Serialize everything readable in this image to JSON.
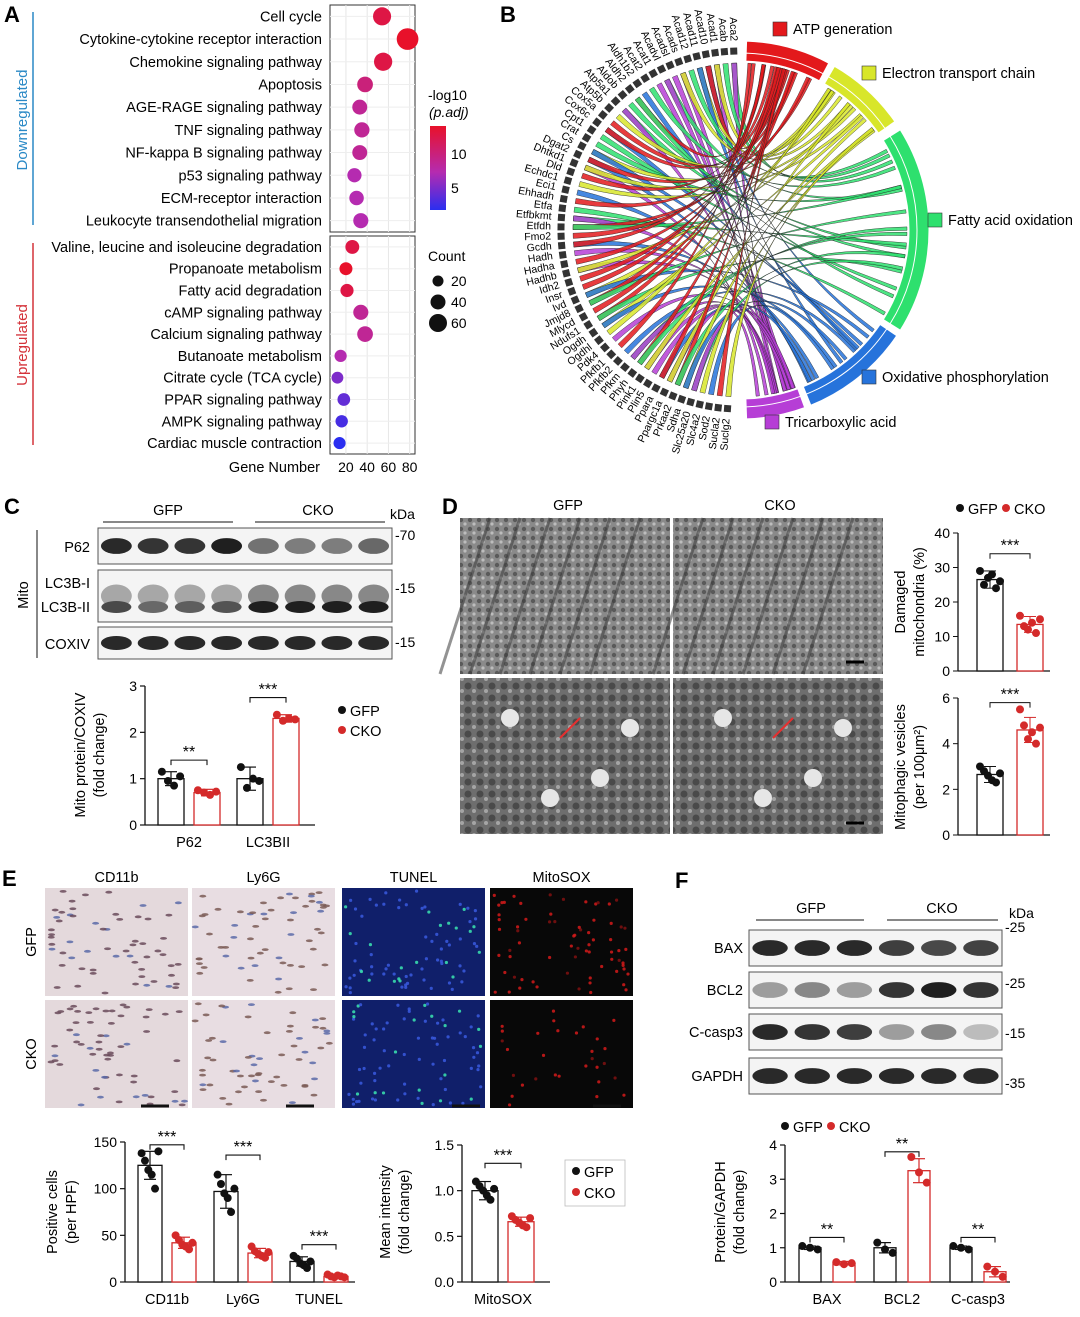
{
  "panels": {
    "A": {
      "label": "A",
      "group_down": "Downregulated",
      "group_up": "Upregulated",
      "down_terms": [
        "Cell cycle",
        "Cytokine-cytokine receptor interaction",
        "Chemokine signaling pathway",
        "Apoptosis",
        "AGE-RAGE signaling pathway",
        "TNF signaling pathway",
        "NF-kappa B signaling pathway",
        "p53 signaling pathway",
        "ECM-receptor interaction",
        "Leukocyte transendothelial migration"
      ],
      "up_terms": [
        "Valine, leucine and isoleucine degradation",
        "Propanoate metabolism",
        "Fatty acid degradation",
        "cAMP signaling pathway",
        "Calcium signaling pathway",
        "Butanoate metabolism",
        "Citrate cycle (TCA cycle)",
        "PPAR signaling pathway",
        "AMPK signaling pathway",
        "Cardiac muscle contraction"
      ],
      "down_values": [
        54,
        78,
        55,
        38,
        33,
        35,
        33,
        28,
        30,
        34
      ],
      "down_padj": [
        11,
        12,
        11,
        9,
        8,
        8,
        8,
        7,
        7,
        7
      ],
      "up_values": [
        26,
        20,
        21,
        34,
        38,
        15,
        12,
        18,
        16,
        14
      ],
      "up_padj": [
        11,
        12,
        11,
        8,
        8,
        7,
        5,
        4,
        3,
        2
      ],
      "xlabel": "Gene Number",
      "xticks": [
        20,
        40,
        60,
        80
      ],
      "xlim": [
        5,
        85
      ],
      "colorbar_title1": "-log10",
      "colorbar_title2": "(p.adj)",
      "colorbar_ticks": [
        "10",
        "5"
      ],
      "size_title": "Count",
      "size_ticks": [
        "20",
        "40",
        "60"
      ],
      "colors": {
        "high": "#e8112a",
        "mid": "#b52bb0",
        "low": "#2a2ef0",
        "strip_down": "#2a89c6",
        "strip_up": "#d4333a"
      }
    },
    "B": {
      "label": "B",
      "genes": [
        "Aca2",
        "Acab",
        "Acad1",
        "Acad10",
        "Acad11",
        "Acad12",
        "Acads",
        "Acadsl",
        "Acadvl",
        "Acat1",
        "Acat2",
        "Aldh1b2",
        "Aldh2",
        "Aldob",
        "Atp5a1",
        "Atp5b",
        "Cox5a",
        "Cox6c",
        "Cpt1",
        "Crat",
        "Cs",
        "Dgat2",
        "Dhtkd1",
        "Dld",
        "Echdc1",
        "Eci1",
        "Ehhadh",
        "Etfa",
        "Etfbkmt",
        "Etfdh",
        "Fmo2",
        "Gcdh",
        "Hadh",
        "Hadha",
        "Hadhb",
        "Idh2",
        "Insr",
        "Ivd",
        "Jmjd8",
        "Mlycd",
        "Ndufs1",
        "Ogdh",
        "Ogdhl",
        "Pdk4",
        "Pfkfb1",
        "Pfkfb2",
        "Pfkm",
        "Phyh",
        "Pink1",
        "Plin5",
        "Ppara",
        "Ppargc1a",
        "Prkaa2",
        "Sdha",
        "Slc25a20",
        "Slc4a2",
        "Sod2",
        "Sucla2",
        "Suclg2"
      ],
      "categories": [
        {
          "name": "ATP generation",
          "color": "#e3191c"
        },
        {
          "name": "Electron transport chain",
          "color": "#d8e62a"
        },
        {
          "name": "Fatty acid oxidation",
          "color": "#2ee06e"
        },
        {
          "name": "Oxidative phosphorylation",
          "color": "#2673db"
        },
        {
          "name": "Tricarboxylic acid",
          "color": "#b63ed6"
        }
      ]
    },
    "C": {
      "label": "C",
      "groups": [
        "GFP",
        "CKO"
      ],
      "kda": "kDa",
      "bands": [
        "P62",
        "LC3B-I",
        "LC3B-II",
        "COXIV"
      ],
      "markers": [
        "70",
        "15",
        "15"
      ],
      "side_label": "Mito",
      "ylabel1": "Mito protein/COXIV",
      "ylabel2": "(fold change)",
      "sig": [
        "**",
        "***"
      ]
    },
    "D": {
      "label": "D",
      "col_labels": [
        "GFP",
        "CKO"
      ],
      "sig": [
        "***",
        "***"
      ],
      "ylabel_top1": "Damaged",
      "ylabel_top2": "mitochondria (%)",
      "ylabel_bot1": "Mitophagic vesicles",
      "ylabel_bot2": "(per 100μm²)"
    },
    "E": {
      "label": "E",
      "col_labels": [
        "CD11b",
        "Ly6G",
        "TUNEL",
        "MitoSOX"
      ],
      "row_labels": [
        "GFP",
        "CKO"
      ],
      "ylabel_left1": "Positive cells",
      "ylabel_left2": "(per HPF)",
      "ylabel_right1": "Mean intensity",
      "ylabel_right2": "(fold change)",
      "sig": [
        "***",
        "***",
        "***",
        "***"
      ]
    },
    "F": {
      "label": "F",
      "groups": [
        "GFP",
        "CKO"
      ],
      "kda": "kDa",
      "bands": [
        "BAX",
        "BCL2",
        "C-casp3",
        "GAPDH"
      ],
      "markers": [
        "25",
        "25",
        "15",
        "35"
      ],
      "ylabel1": "Protein/GAPDH",
      "ylabel2": "(fold change)",
      "sig": [
        "**",
        "**",
        "**"
      ]
    }
  },
  "legend": {
    "gfp": "GFP",
    "cko": "CKO",
    "gfp_color": "#111111",
    "cko_color": "#d42a2a"
  },
  "chart_data": [
    {
      "type": "bar",
      "id": "C",
      "categories": [
        "P62",
        "LC3BII"
      ],
      "series": [
        {
          "name": "GFP",
          "values": [
            1.0,
            1.0
          ],
          "sd": [
            0.15,
            0.25
          ]
        },
        {
          "name": "CKO",
          "values": [
            0.7,
            2.3
          ],
          "sd": [
            0.07,
            0.08
          ]
        }
      ],
      "points": {
        "GFP": [
          [
            1.15,
            0.95,
            0.85,
            1.05
          ],
          [
            1.25,
            0.8,
            1.0,
            0.95
          ]
        ],
        "CKO": [
          [
            0.75,
            0.7,
            0.65,
            0.72
          ],
          [
            2.38,
            2.25,
            2.3,
            2.28
          ]
        ]
      },
      "ylabel": "Mito protein/COXIV (fold change)",
      "ylim": [
        0,
        3
      ],
      "yticks": [
        0,
        1,
        2,
        3
      ]
    },
    {
      "type": "bar",
      "id": "D-top",
      "categories": [
        "GFP",
        "CKO"
      ],
      "values": [
        26.5,
        13.5
      ],
      "sd": [
        2.5,
        2.3
      ],
      "points": [
        [
          29,
          25,
          27,
          28,
          24,
          26
        ],
        [
          16,
          13,
          12,
          14,
          11,
          15
        ]
      ],
      "ylabel": "Damaged mitochondria (%)",
      "ylim": [
        0,
        40
      ],
      "yticks": [
        0,
        10,
        20,
        30,
        40
      ]
    },
    {
      "type": "bar",
      "id": "D-bottom",
      "categories": [
        "GFP",
        "CKO"
      ],
      "values": [
        2.65,
        4.6
      ],
      "sd": [
        0.35,
        0.55
      ],
      "points": [
        [
          3.0,
          2.8,
          2.6,
          2.4,
          2.3,
          2.7
        ],
        [
          5.5,
          4.8,
          4.2,
          4.5,
          4.0,
          4.7
        ]
      ],
      "ylabel": "Mitophagic vesicles (per 100μm²)",
      "ylim": [
        0,
        6
      ],
      "yticks": [
        0,
        2,
        4,
        6
      ]
    },
    {
      "type": "bar",
      "id": "E-left",
      "categories": [
        "CD11b",
        "Ly6G",
        "TUNEL"
      ],
      "series": [
        {
          "name": "GFP",
          "values": [
            125,
            97,
            22
          ],
          "sd": [
            15,
            18,
            5
          ]
        },
        {
          "name": "CKO",
          "values": [
            42,
            31,
            6
          ],
          "sd": [
            6,
            5,
            2
          ]
        }
      ],
      "points": {
        "GFP": [
          [
            138,
            130,
            120,
            115,
            100,
            140
          ],
          [
            115,
            105,
            95,
            90,
            75,
            100
          ],
          [
            28,
            25,
            20,
            18,
            15,
            22
          ]
        ],
        "CKO": [
          [
            50,
            45,
            40,
            38,
            35,
            42
          ],
          [
            38,
            33,
            30,
            28,
            26,
            32
          ]
        ],
        "CKO_TUNEL": [
          8,
          6,
          5,
          7,
          6,
          5
        ]
      },
      "ylabel": "Positive cells (per HPF)",
      "ylim": [
        0,
        150
      ],
      "yticks": [
        0,
        50,
        100,
        150
      ]
    },
    {
      "type": "bar",
      "id": "E-right",
      "categories": [
        "MitoSOX"
      ],
      "series": [
        {
          "name": "GFP",
          "values": [
            1.0
          ],
          "sd": [
            0.1
          ]
        },
        {
          "name": "CKO",
          "values": [
            0.66
          ],
          "sd": [
            0.05
          ]
        }
      ],
      "points": {
        "GFP": [
          [
            1.1,
            1.05,
            1.0,
            0.95,
            0.9,
            1.02
          ]
        ],
        "CKO": [
          [
            0.72,
            0.68,
            0.65,
            0.62,
            0.6,
            0.7
          ]
        ]
      },
      "ylabel": "Mean intensity (fold change)",
      "ylim": [
        0,
        1.5
      ],
      "yticks": [
        0,
        0.5,
        1.0,
        1.5
      ]
    },
    {
      "type": "bar",
      "id": "F",
      "categories": [
        "BAX",
        "BCL2",
        "C-casp3"
      ],
      "series": [
        {
          "name": "GFP",
          "values": [
            1.0,
            1.0,
            1.0
          ],
          "sd": [
            0.05,
            0.15,
            0.05
          ]
        },
        {
          "name": "CKO",
          "values": [
            0.55,
            3.25,
            0.3
          ],
          "sd": [
            0.05,
            0.35,
            0.15
          ]
        }
      ],
      "points": {
        "GFP": [
          [
            1.05,
            1.0,
            0.95
          ],
          [
            1.15,
            0.95,
            0.85
          ],
          [
            1.05,
            1.0,
            0.95
          ]
        ],
        "CKO": [
          [
            0.58,
            0.52,
            0.55
          ],
          [
            3.65,
            3.2,
            2.9
          ],
          [
            0.45,
            0.3,
            0.15
          ]
        ]
      },
      "ylabel": "Protein/GAPDH (fold change)",
      "ylim": [
        0,
        4
      ],
      "yticks": [
        0,
        1,
        2,
        3,
        4
      ]
    }
  ]
}
